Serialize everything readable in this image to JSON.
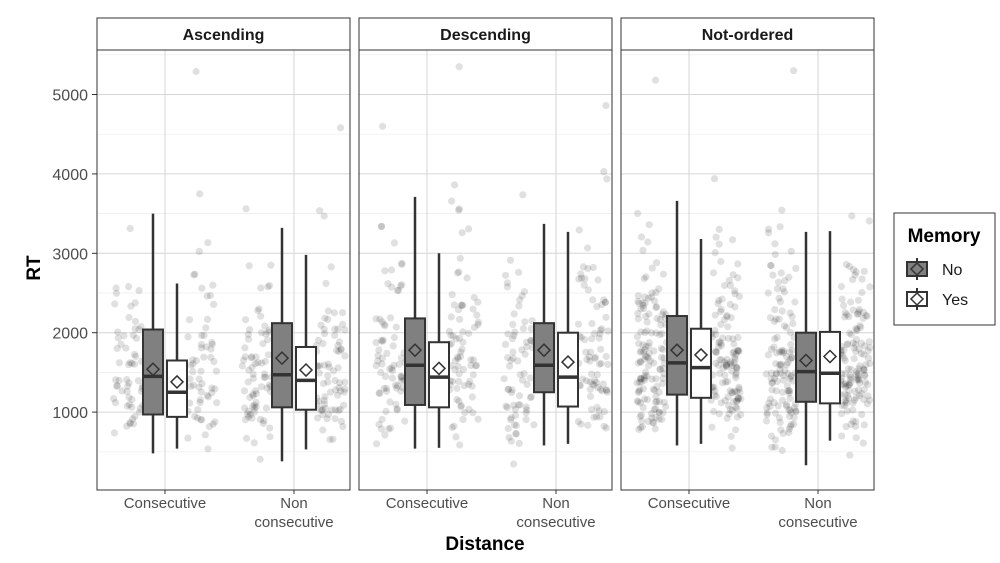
{
  "chart_data": {
    "type": "boxplot",
    "facet_by": "ordering",
    "facets": [
      "Ascending",
      "Descending",
      "Not-ordered"
    ],
    "categories": [
      "Consecutive",
      "Non\nconsecutive"
    ],
    "xlabel": "Distance",
    "ylabel": "RT",
    "ylim": [
      0,
      5600
    ],
    "yticks": [
      1000,
      2000,
      3000,
      4000,
      5000
    ],
    "grid": true,
    "legend": {
      "title": "Memory",
      "entries": [
        "No",
        "Yes"
      ],
      "placement": "right"
    },
    "colors": {
      "No": "#808080",
      "Yes": "#ffffff",
      "points": "#000000",
      "strip_bg": "#ffffff",
      "grid": "#d9d9d9"
    },
    "groups": [
      {
        "facet": "Ascending",
        "distance": "Consecutive",
        "memory": "No",
        "min": 480,
        "q1": 970,
        "median": 1450,
        "q3": 2040,
        "max": 3500,
        "mean": 1540
      },
      {
        "facet": "Ascending",
        "distance": "Consecutive",
        "memory": "Yes",
        "min": 540,
        "q1": 940,
        "median": 1250,
        "q3": 1650,
        "max": 2620,
        "mean": 1380
      },
      {
        "facet": "Ascending",
        "distance": "Non consecutive",
        "memory": "No",
        "min": 380,
        "q1": 1060,
        "median": 1470,
        "q3": 2120,
        "max": 3320,
        "mean": 1680
      },
      {
        "facet": "Ascending",
        "distance": "Non consecutive",
        "memory": "Yes",
        "min": 530,
        "q1": 1030,
        "median": 1400,
        "q3": 1820,
        "max": 2980,
        "mean": 1530
      },
      {
        "facet": "Descending",
        "distance": "Consecutive",
        "memory": "No",
        "min": 540,
        "q1": 1090,
        "median": 1590,
        "q3": 2180,
        "max": 3710,
        "mean": 1780
      },
      {
        "facet": "Descending",
        "distance": "Consecutive",
        "memory": "Yes",
        "min": 550,
        "q1": 1060,
        "median": 1440,
        "q3": 1880,
        "max": 3000,
        "mean": 1550
      },
      {
        "facet": "Descending",
        "distance": "Non consecutive",
        "memory": "No",
        "min": 580,
        "q1": 1250,
        "median": 1590,
        "q3": 2120,
        "max": 3370,
        "mean": 1780
      },
      {
        "facet": "Descending",
        "distance": "Non consecutive",
        "memory": "Yes",
        "min": 600,
        "q1": 1070,
        "median": 1440,
        "q3": 2000,
        "max": 3270,
        "mean": 1630
      },
      {
        "facet": "Not-ordered",
        "distance": "Consecutive",
        "memory": "No",
        "min": 580,
        "q1": 1220,
        "median": 1620,
        "q3": 2210,
        "max": 3660,
        "mean": 1780
      },
      {
        "facet": "Not-ordered",
        "distance": "Consecutive",
        "memory": "Yes",
        "min": 600,
        "q1": 1180,
        "median": 1560,
        "q3": 2050,
        "max": 3180,
        "mean": 1720
      },
      {
        "facet": "Not-ordered",
        "distance": "Non consecutive",
        "memory": "No",
        "min": 330,
        "q1": 1130,
        "median": 1510,
        "q3": 2000,
        "max": 3270,
        "mean": 1650
      },
      {
        "facet": "Not-ordered",
        "distance": "Non consecutive",
        "memory": "Yes",
        "min": 640,
        "q1": 1110,
        "median": 1490,
        "q3": 2010,
        "max": 3280,
        "mean": 1700
      }
    ],
    "jitter_points_per_group": [
      {
        "facet": "Ascending",
        "distance": "Consecutive",
        "n": 120,
        "max": 5290
      },
      {
        "facet": "Ascending",
        "distance": "Non consecutive",
        "n": 150,
        "max": 4580
      },
      {
        "facet": "Descending",
        "distance": "Consecutive",
        "n": 150,
        "max": 4600
      },
      {
        "facet": "Descending",
        "distance": "Non consecutive",
        "n": 150,
        "max": 4860
      },
      {
        "facet": "Not-ordered",
        "distance": "Consecutive",
        "n": 260,
        "max": 5180
      },
      {
        "facet": "Not-ordered",
        "distance": "Non consecutive",
        "n": 260,
        "max": 5300
      }
    ]
  }
}
